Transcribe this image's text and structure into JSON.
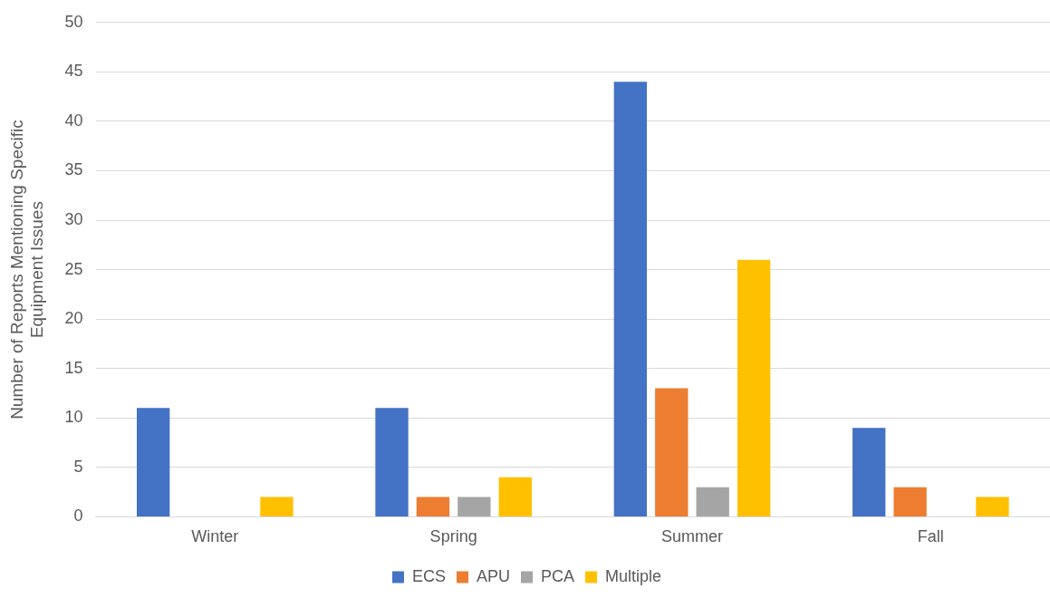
{
  "chart_data": {
    "type": "bar",
    "ylabel": "Number of Reports Mentioning Specific Equipment Issues",
    "categories": [
      "Winter",
      "Spring",
      "Summer",
      "Fall"
    ],
    "series": [
      {
        "name": "ECS",
        "color": "#4472c4",
        "values": [
          11,
          11,
          44,
          9
        ]
      },
      {
        "name": "APU",
        "color": "#ed7d31",
        "values": [
          0,
          2,
          13,
          3
        ]
      },
      {
        "name": "PCA",
        "color": "#a5a5a5",
        "values": [
          0,
          2,
          3,
          0
        ]
      },
      {
        "name": "Multiple",
        "color": "#ffc000",
        "values": [
          2,
          4,
          26,
          2
        ]
      }
    ],
    "ylim": [
      0,
      50
    ],
    "yticks": [
      0,
      5,
      10,
      15,
      20,
      25,
      30,
      35,
      40,
      45,
      50
    ],
    "grid": "y",
    "legend": "bottom"
  }
}
